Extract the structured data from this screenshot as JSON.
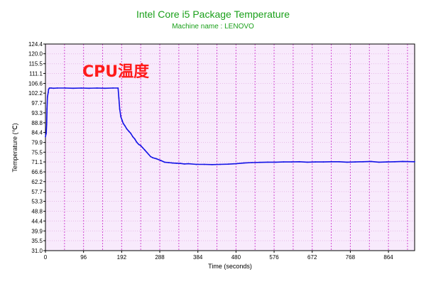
{
  "chart_data": {
    "type": "line",
    "title": "Intel Core i5 Package Temperature",
    "subtitle": "Machine name : LENOVO",
    "xlabel": "Time (seconds)",
    "ylabel": "Temperature (℃)",
    "annotation": "CPU温度",
    "xlim": [
      0,
      930
    ],
    "ylim": [
      31.0,
      124.4
    ],
    "x_ticks": [
      "0",
      "96",
      "192",
      "288",
      "384",
      "480",
      "576",
      "672",
      "768",
      "864"
    ],
    "y_ticks": [
      "124.4",
      "120.0",
      "115.5",
      "111.1",
      "106.6",
      "102.2",
      "97.7",
      "93.3",
      "88.8",
      "84.4",
      "79.9",
      "75.5",
      "71.1",
      "66.6",
      "62.2",
      "57.7",
      "53.3",
      "48.8",
      "44.4",
      "39.9",
      "35.5",
      "31.0"
    ],
    "grid": true,
    "legend": "none",
    "colors": {
      "line": "#1212e6",
      "plot_background": "#f8eafc",
      "grid_vertical": "#d24dd2",
      "grid_horizontal": "#e6b9e6",
      "title": "#1aa01a",
      "annotation": "#ff1a1a"
    },
    "series": [
      {
        "x": [
          0,
          2,
          3,
          4,
          5,
          7,
          8,
          10,
          12,
          15,
          20,
          30,
          50,
          70,
          90,
          110,
          130,
          150,
          170,
          183,
          185,
          187,
          190,
          193,
          196,
          200,
          205,
          210,
          215,
          220,
          225,
          230,
          235,
          240,
          245,
          250,
          255,
          260,
          265,
          270,
          280,
          290,
          300,
          310,
          320,
          330,
          340,
          350,
          360,
          380,
          400,
          420,
          440,
          460,
          480,
          500,
          520,
          540,
          560,
          580,
          600,
          620,
          640,
          660,
          680,
          700,
          720,
          740,
          760,
          780,
          800,
          820,
          840,
          860,
          880,
          900,
          930
        ],
        "y": [
          82.5,
          84.0,
          88.0,
          95.0,
          100.5,
          102.5,
          104.0,
          104.5,
          104.5,
          104.5,
          104.4,
          104.5,
          104.5,
          104.4,
          104.5,
          104.4,
          104.5,
          104.4,
          104.5,
          104.5,
          100.0,
          95.0,
          91.5,
          90.0,
          88.5,
          87.5,
          86.0,
          85.0,
          84.0,
          82.5,
          81.5,
          80.0,
          79.0,
          78.5,
          77.5,
          76.5,
          75.5,
          74.5,
          73.5,
          73.0,
          72.5,
          71.8,
          71.0,
          70.8,
          70.6,
          70.5,
          70.4,
          70.2,
          70.3,
          70.0,
          70.0,
          69.9,
          70.0,
          70.1,
          70.3,
          70.6,
          70.8,
          70.9,
          71.0,
          71.0,
          71.1,
          71.1,
          71.2,
          71.0,
          71.1,
          71.1,
          71.2,
          71.2,
          71.0,
          71.1,
          71.2,
          71.3,
          71.0,
          71.1,
          71.2,
          71.3,
          71.2
        ]
      }
    ]
  }
}
